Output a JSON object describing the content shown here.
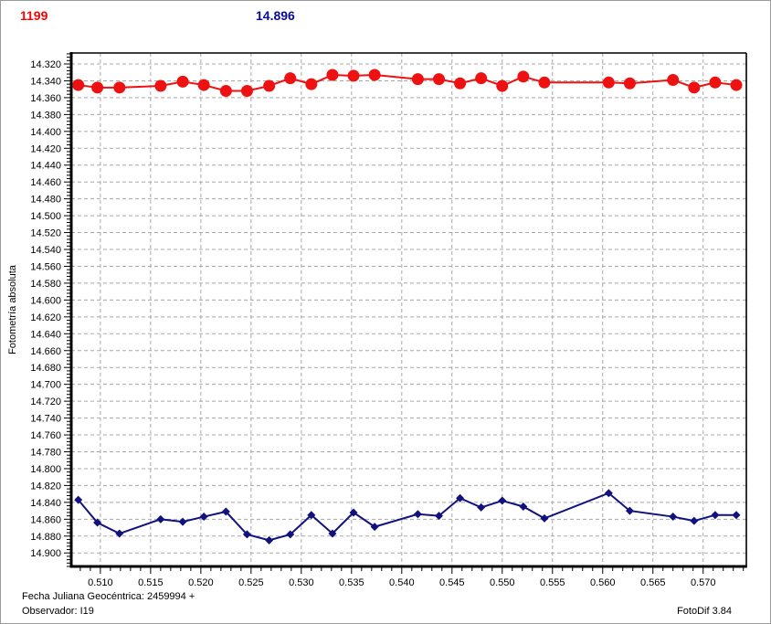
{
  "header": {
    "object_number": "1199",
    "reference_value": "14.896"
  },
  "footer": {
    "julian_date_label": "Fecha Juliana Geocéntrica: 2459994 +",
    "observer_label": "Observador: I19",
    "software_label": "FotoDif 3.84"
  },
  "colors": {
    "target_red": "#ee1111",
    "comparison_blue": "#12127e",
    "grid": "#a8a8a8",
    "axis": "#000000",
    "header_red": "#f00505",
    "header_blue": "#0b0b8f"
  },
  "chart_data": {
    "type": "scatter",
    "title": "",
    "xlabel": "",
    "ylabel": "Fotometría absoluta",
    "y_axis_inverted": true,
    "grid": "dashed",
    "legend_position": "none",
    "xlim": [
      0.5071,
      0.5743
    ],
    "ylim": [
      14.307,
      14.916
    ],
    "x_ticks": [
      "0.510",
      "0.515",
      "0.520",
      "0.525",
      "0.530",
      "0.535",
      "0.540",
      "0.545",
      "0.550",
      "0.555",
      "0.560",
      "0.565",
      "0.570"
    ],
    "y_ticks": [
      "14.320",
      "14.340",
      "14.360",
      "14.380",
      "14.400",
      "14.420",
      "14.440",
      "14.460",
      "14.480",
      "14.500",
      "14.520",
      "14.540",
      "14.560",
      "14.580",
      "14.600",
      "14.620",
      "14.640",
      "14.660",
      "14.680",
      "14.700",
      "14.720",
      "14.740",
      "14.760",
      "14.780",
      "14.800",
      "14.820",
      "14.840",
      "14.860",
      "14.880",
      "14.900"
    ],
    "x_minor_step": 0.001,
    "y_minor_step": 0.004,
    "x": [
      0.5078,
      0.5097,
      0.5119,
      0.516,
      0.5182,
      0.5203,
      0.5225,
      0.5246,
      0.5268,
      0.5289,
      0.531,
      0.5331,
      0.5352,
      0.5373,
      0.5416,
      0.5437,
      0.5458,
      0.5479,
      0.55,
      0.5521,
      0.5542,
      0.5606,
      0.5627,
      0.567,
      0.5691,
      0.5712,
      0.5733
    ],
    "series": [
      {
        "name": "target-red",
        "marker": "circle",
        "marker_size": 6.5,
        "color": "#ee1111",
        "values": [
          14.345,
          14.348,
          14.348,
          14.346,
          14.341,
          14.345,
          14.352,
          14.352,
          14.346,
          14.337,
          14.344,
          14.333,
          14.334,
          14.333,
          14.338,
          14.338,
          14.343,
          14.337,
          14.346,
          14.335,
          14.342,
          14.342,
          14.343,
          14.339,
          14.348,
          14.342,
          14.345
        ]
      },
      {
        "name": "comparison-blue",
        "marker": "diamond",
        "marker_size": 4.5,
        "color": "#12127e",
        "values": [
          14.837,
          14.864,
          14.877,
          14.86,
          14.863,
          14.857,
          14.851,
          14.878,
          14.885,
          14.878,
          14.855,
          14.877,
          14.852,
          14.869,
          14.854,
          14.856,
          14.835,
          14.846,
          14.838,
          14.845,
          14.859,
          14.829,
          14.85,
          14.857,
          14.862,
          14.855,
          14.855
        ]
      }
    ]
  }
}
